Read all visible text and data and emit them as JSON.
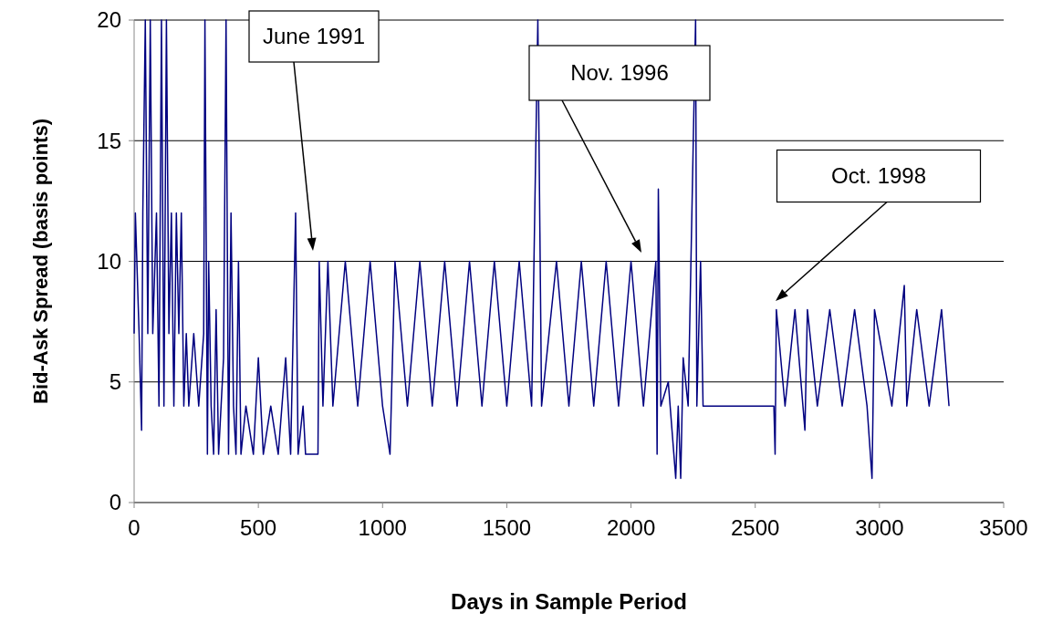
{
  "chart_data": {
    "type": "line",
    "xlabel": "Days in Sample Period",
    "ylabel": "Bid-Ask Spread (basis points)",
    "xlim": [
      0,
      3500
    ],
    "xticks": [
      0,
      500,
      1000,
      1500,
      2000,
      2500,
      3000,
      3500
    ],
    "ylim": [
      0,
      20
    ],
    "yticks": [
      0,
      5,
      10,
      15,
      20
    ],
    "grid": "y",
    "marker": "none",
    "line_style": "solid",
    "annotations": [
      "June 1991",
      "Nov. 1996",
      "Oct. 1998"
    ],
    "series": [
      {
        "color": "#000080",
        "x": [
          0,
          5,
          20,
          30,
          35,
          45,
          55,
          65,
          75,
          90,
          100,
          110,
          120,
          130,
          140,
          150,
          160,
          170,
          180,
          190,
          200,
          210,
          220,
          240,
          260,
          280,
          285,
          295,
          300,
          310,
          320,
          330,
          340,
          360,
          370,
          380,
          390,
          400,
          410,
          420,
          430,
          450,
          480,
          500,
          520,
          550,
          580,
          610,
          630,
          650,
          660,
          680,
          690,
          740,
          745,
          760,
          780,
          800,
          850,
          900,
          950,
          1000,
          1030,
          1050,
          1100,
          1150,
          1200,
          1250,
          1300,
          1350,
          1400,
          1450,
          1500,
          1550,
          1600,
          1625,
          1640,
          1700,
          1750,
          1800,
          1850,
          1900,
          1950,
          2000,
          2050,
          2100,
          2105,
          2110,
          2120,
          2150,
          2180,
          2190,
          2200,
          2210,
          2230,
          2260,
          2265,
          2280,
          2290,
          2575,
          2580,
          2585,
          2620,
          2660,
          2700,
          2710,
          2750,
          2800,
          2850,
          2900,
          2950,
          2970,
          2980,
          3050,
          3100,
          3110,
          3150,
          3200,
          3250,
          3280
        ],
        "values": [
          7,
          12,
          7,
          3,
          12,
          20,
          7,
          20,
          7,
          12,
          4,
          20,
          4,
          20,
          7,
          12,
          4,
          12,
          7,
          12,
          4,
          7,
          4,
          7,
          4,
          7,
          20,
          2,
          10,
          4,
          2,
          8,
          2,
          6,
          20,
          2,
          12,
          4,
          2,
          10,
          2,
          4,
          2,
          6,
          2,
          4,
          2,
          6,
          2,
          12,
          2,
          4,
          2,
          2,
          10,
          4,
          10,
          4,
          10,
          4,
          10,
          4,
          2,
          10,
          4,
          10,
          4,
          10,
          4,
          10,
          4,
          10,
          4,
          10,
          4,
          20,
          4,
          10,
          4,
          10,
          4,
          10,
          4,
          10,
          4,
          10,
          2,
          13,
          4,
          5,
          1,
          4,
          1,
          6,
          4,
          20,
          4,
          10,
          4,
          4,
          2,
          8,
          4,
          8,
          3,
          8,
          4,
          8,
          4,
          8,
          4,
          1,
          8,
          4,
          9,
          4,
          8,
          4,
          8,
          4
        ]
      }
    ]
  }
}
